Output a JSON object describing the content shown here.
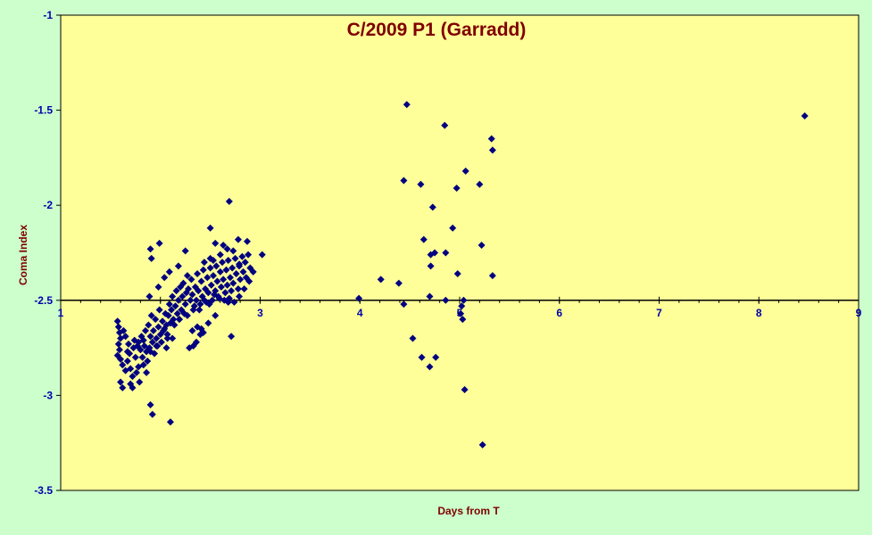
{
  "colors": {
    "page_background": "#ccffcc",
    "plot_background": "#ffff99",
    "marker": "#000080",
    "title": "#7f0000",
    "axis_title": "#7f0000",
    "tick_label": "#0000aa",
    "axis_line": "#000000"
  },
  "chart_data": {
    "type": "scatter",
    "title": "C/2009 P1 (Garradd)",
    "xlabel": "Days from T",
    "ylabel": "Coma Index",
    "xlim": [
      1,
      9
    ],
    "ylim": [
      -3.5,
      -1
    ],
    "x_axis_crosses_y_at": -2.5,
    "x_ticks": [
      1,
      2,
      3,
      4,
      5,
      6,
      7,
      8,
      9
    ],
    "x_tick_labels": [
      "1",
      "",
      "3",
      "4",
      "5",
      "6",
      "7",
      "8",
      "9"
    ],
    "y_ticks": [
      -1,
      -1.5,
      -2,
      -2.5,
      -3,
      -3.5
    ],
    "y_tick_labels": [
      "-1",
      "-1.5",
      "-2",
      "-2.5",
      "-3",
      "-3.5"
    ],
    "grid": false,
    "legend": "none",
    "marker": "diamond",
    "series": [
      {
        "points": [
          [
            1.57,
            -2.61
          ],
          [
            1.58,
            -2.64
          ],
          [
            1.59,
            -2.67
          ],
          [
            1.6,
            -2.7
          ],
          [
            1.58,
            -2.73
          ],
          [
            1.59,
            -2.76
          ],
          [
            1.57,
            -2.79
          ],
          [
            1.6,
            -2.81
          ],
          [
            1.62,
            -2.84
          ],
          [
            1.6,
            -2.93
          ],
          [
            1.62,
            -2.96
          ],
          [
            1.65,
            -2.87
          ],
          [
            1.67,
            -2.82
          ],
          [
            1.63,
            -2.66
          ],
          [
            1.65,
            -2.69
          ],
          [
            1.68,
            -2.73
          ],
          [
            1.67,
            -2.77
          ],
          [
            1.69,
            -2.78
          ],
          [
            1.7,
            -2.86
          ],
          [
            1.72,
            -2.96
          ],
          [
            1.73,
            -2.75
          ],
          [
            1.74,
            -2.71
          ],
          [
            1.75,
            -2.8
          ],
          [
            1.77,
            -2.74
          ],
          [
            1.78,
            -2.85
          ],
          [
            1.78,
            -2.72
          ],
          [
            1.8,
            -2.76
          ],
          [
            1.81,
            -2.69
          ],
          [
            1.82,
            -2.8
          ],
          [
            1.83,
            -2.71
          ],
          [
            1.84,
            -2.74
          ],
          [
            1.85,
            -2.66
          ],
          [
            1.86,
            -2.77
          ],
          [
            1.87,
            -2.82
          ],
          [
            1.88,
            -2.63
          ],
          [
            1.89,
            -2.75
          ],
          [
            1.9,
            -2.69
          ],
          [
            1.91,
            -2.58
          ],
          [
            1.92,
            -2.72
          ],
          [
            1.93,
            -2.66
          ],
          [
            1.94,
            -2.78
          ],
          [
            1.95,
            -2.6
          ],
          [
            1.96,
            -2.7
          ],
          [
            1.97,
            -2.74
          ],
          [
            1.98,
            -2.64
          ],
          [
            1.99,
            -2.55
          ],
          [
            2.0,
            -2.68
          ],
          [
            2.01,
            -2.72
          ],
          [
            2.02,
            -2.61
          ],
          [
            2.03,
            -2.66
          ],
          [
            2.05,
            -2.57
          ],
          [
            2.06,
            -2.63
          ],
          [
            2.07,
            -2.7
          ],
          [
            2.08,
            -2.58
          ],
          [
            2.09,
            -2.52
          ],
          [
            2.1,
            -2.62
          ],
          [
            2.11,
            -2.55
          ],
          [
            2.12,
            -2.48
          ],
          [
            2.13,
            -2.6
          ],
          [
            2.15,
            -2.53
          ],
          [
            2.16,
            -2.45
          ],
          [
            2.17,
            -2.57
          ],
          [
            2.18,
            -2.5
          ],
          [
            2.2,
            -2.43
          ],
          [
            2.21,
            -2.55
          ],
          [
            2.22,
            -2.48
          ],
          [
            2.23,
            -2.41
          ],
          [
            2.25,
            -2.52
          ],
          [
            2.26,
            -2.46
          ],
          [
            2.27,
            -2.58
          ],
          [
            2.28,
            -2.44
          ],
          [
            2.3,
            -2.5
          ],
          [
            2.31,
            -2.39
          ],
          [
            2.32,
            -2.47
          ],
          [
            2.33,
            -2.55
          ],
          [
            2.35,
            -2.43
          ],
          [
            2.36,
            -2.5
          ],
          [
            2.37,
            -2.36
          ],
          [
            2.38,
            -2.45
          ],
          [
            2.4,
            -2.52
          ],
          [
            2.41,
            -2.4
          ],
          [
            2.42,
            -2.48
          ],
          [
            2.43,
            -2.34
          ],
          [
            2.45,
            -2.44
          ],
          [
            2.46,
            -2.51
          ],
          [
            2.47,
            -2.38
          ],
          [
            2.48,
            -2.46
          ],
          [
            2.5,
            -2.33
          ],
          [
            2.51,
            -2.42
          ],
          [
            2.52,
            -2.5
          ],
          [
            2.53,
            -2.37
          ],
          [
            2.55,
            -2.45
          ],
          [
            2.56,
            -2.32
          ],
          [
            2.57,
            -2.4
          ],
          [
            2.58,
            -2.48
          ],
          [
            2.6,
            -2.35
          ],
          [
            2.61,
            -2.43
          ],
          [
            2.62,
            -2.3
          ],
          [
            2.63,
            -2.39
          ],
          [
            2.65,
            -2.46
          ],
          [
            2.66,
            -2.34
          ],
          [
            2.67,
            -2.42
          ],
          [
            2.68,
            -2.29
          ],
          [
            2.7,
            -2.38
          ],
          [
            2.71,
            -2.45
          ],
          [
            2.72,
            -2.33
          ],
          [
            2.73,
            -2.41
          ],
          [
            2.75,
            -2.28
          ],
          [
            2.76,
            -2.36
          ],
          [
            2.78,
            -2.44
          ],
          [
            2.79,
            -2.31
          ],
          [
            2.8,
            -2.39
          ],
          [
            2.82,
            -2.27
          ],
          [
            2.83,
            -2.35
          ],
          [
            2.85,
            -2.3
          ],
          [
            2.86,
            -2.38
          ],
          [
            2.88,
            -2.26
          ],
          [
            2.9,
            -2.33
          ],
          [
            1.72,
            -2.9
          ],
          [
            1.76,
            -2.88
          ],
          [
            1.83,
            -2.84
          ],
          [
            1.9,
            -2.77
          ],
          [
            1.96,
            -2.74
          ],
          [
            2.04,
            -2.65
          ],
          [
            2.14,
            -2.63
          ],
          [
            2.19,
            -2.6
          ],
          [
            2.24,
            -2.57
          ],
          [
            2.34,
            -2.53
          ],
          [
            2.39,
            -2.55
          ],
          [
            2.44,
            -2.5
          ],
          [
            2.49,
            -2.52
          ],
          [
            2.54,
            -2.47
          ],
          [
            2.59,
            -2.49
          ],
          [
            2.64,
            -2.5
          ],
          [
            2.69,
            -2.49
          ],
          [
            2.74,
            -2.51
          ],
          [
            2.79,
            -2.48
          ],
          [
            2.84,
            -2.44
          ],
          [
            2.89,
            -2.4
          ],
          [
            2.93,
            -2.35
          ],
          [
            1.79,
            -2.93
          ],
          [
            1.86,
            -2.88
          ],
          [
            2.06,
            -2.75
          ],
          [
            2.12,
            -2.7
          ],
          [
            2.32,
            -2.66
          ],
          [
            2.36,
            -2.72
          ],
          [
            2.4,
            -2.68
          ],
          [
            2.48,
            -2.62
          ],
          [
            2.55,
            -2.58
          ],
          [
            1.89,
            -2.48
          ],
          [
            1.98,
            -2.43
          ],
          [
            2.04,
            -2.38
          ],
          [
            2.09,
            -2.35
          ],
          [
            2.18,
            -2.32
          ],
          [
            2.27,
            -2.37
          ],
          [
            2.44,
            -2.3
          ],
          [
            2.5,
            -2.28
          ],
          [
            2.6,
            -2.26
          ],
          [
            2.67,
            -2.23
          ],
          [
            2.55,
            -2.2
          ],
          [
            1.7,
            -2.94
          ],
          [
            1.9,
            -2.23
          ],
          [
            1.91,
            -2.28
          ],
          [
            1.99,
            -2.2
          ],
          [
            2.07,
            -2.68
          ],
          [
            2.19,
            -2.6
          ],
          [
            2.29,
            -2.75
          ],
          [
            2.33,
            -2.74
          ],
          [
            2.37,
            -2.64
          ],
          [
            2.41,
            -2.65
          ],
          [
            2.43,
            -2.67
          ],
          [
            2.5,
            -2.12
          ],
          [
            2.53,
            -2.29
          ],
          [
            2.63,
            -2.21
          ],
          [
            2.68,
            -2.51
          ],
          [
            2.71,
            -2.69
          ],
          [
            2.73,
            -2.24
          ],
          [
            2.78,
            -2.18
          ],
          [
            2.79,
            -2.32
          ],
          [
            2.87,
            -2.19
          ],
          [
            3.02,
            -2.26
          ],
          [
            2.69,
            -1.98
          ],
          [
            2.25,
            -2.24
          ],
          [
            1.9,
            -3.05
          ],
          [
            1.92,
            -3.1
          ],
          [
            2.1,
            -3.14
          ],
          [
            3.99,
            -2.49
          ],
          [
            4.21,
            -2.39
          ],
          [
            4.39,
            -2.41
          ],
          [
            4.44,
            -2.52
          ],
          [
            4.44,
            -1.87
          ],
          [
            4.47,
            -1.47
          ],
          [
            4.53,
            -2.7
          ],
          [
            4.61,
            -1.89
          ],
          [
            4.62,
            -2.8
          ],
          [
            4.64,
            -2.18
          ],
          [
            4.7,
            -2.48
          ],
          [
            4.7,
            -2.85
          ],
          [
            4.71,
            -2.32
          ],
          [
            4.71,
            -2.26
          ],
          [
            4.73,
            -2.01
          ],
          [
            4.75,
            -2.25
          ],
          [
            4.76,
            -2.8
          ],
          [
            4.85,
            -1.58
          ],
          [
            4.86,
            -2.25
          ],
          [
            4.86,
            -2.5
          ],
          [
            4.93,
            -2.12
          ],
          [
            4.97,
            -1.91
          ],
          [
            4.98,
            -2.36
          ],
          [
            5.01,
            -2.57
          ],
          [
            5.02,
            -2.53
          ],
          [
            5.03,
            -2.6
          ],
          [
            5.04,
            -2.5
          ],
          [
            5.05,
            -2.97
          ],
          [
            5.06,
            -1.82
          ],
          [
            5.2,
            -1.89
          ],
          [
            5.22,
            -2.21
          ],
          [
            5.23,
            -3.26
          ],
          [
            5.32,
            -1.65
          ],
          [
            5.33,
            -1.71
          ],
          [
            5.33,
            -2.37
          ],
          [
            8.46,
            -1.53
          ]
        ]
      }
    ]
  }
}
